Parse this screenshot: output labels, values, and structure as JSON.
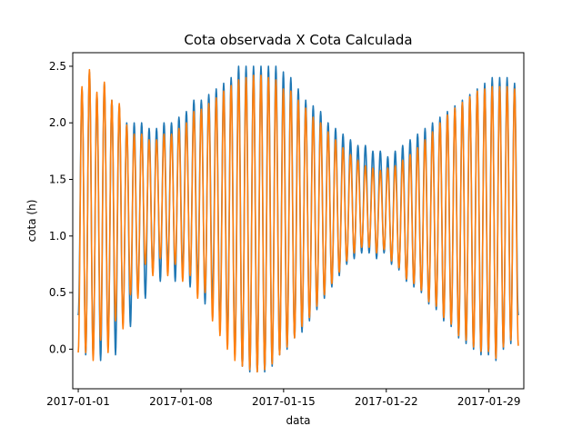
{
  "chart_data": {
    "type": "line",
    "title": "Cota observada X Cota Calculada",
    "xlabel": "data",
    "ylabel": "cota (h)",
    "x_start": "2017-01-01",
    "x_end": "2017-01-31",
    "xlim": [
      "2016-12-31 15:00",
      "2017-01-31 09:00"
    ],
    "ylim": [
      -0.35,
      2.62
    ],
    "x_ticks": [
      "2017-01-01",
      "2017-01-08",
      "2017-01-15",
      "2017-01-22",
      "2017-01-29"
    ],
    "y_ticks": [
      "0.0",
      "0.5",
      "1.0",
      "1.5",
      "2.0",
      "2.5"
    ],
    "grid": false,
    "legend": "none",
    "series": [
      {
        "color": "#1f77b4",
        "highs": [
          2.3,
          2.45,
          2.25,
          2.35,
          2.2,
          2.15,
          2.0,
          2.0,
          2.0,
          1.95,
          1.95,
          2.0,
          2.0,
          2.05,
          2.1,
          2.2,
          2.2,
          2.25,
          2.3,
          2.35,
          2.4,
          2.5,
          2.5,
          2.5,
          2.5,
          2.5,
          2.5,
          2.45,
          2.4,
          2.3,
          2.2,
          2.15,
          2.1,
          2.0,
          1.95,
          1.9,
          1.85,
          1.8,
          1.8,
          1.75,
          1.75,
          1.7,
          1.75,
          1.8,
          1.85,
          1.9,
          1.95,
          2.0,
          2.05,
          2.1,
          2.15,
          2.2,
          2.25,
          2.3,
          2.35,
          2.4,
          2.4,
          2.4,
          2.35,
          2.3,
          2.35
        ],
        "lows": [
          0.3,
          -0.05,
          -0.05,
          -0.1,
          0.05,
          -0.05,
          0.25,
          0.2,
          0.5,
          0.45,
          0.7,
          0.6,
          0.75,
          0.6,
          0.7,
          0.55,
          0.6,
          0.4,
          0.45,
          0.2,
          0.1,
          -0.05,
          -0.15,
          -0.2,
          -0.2,
          -0.2,
          -0.15,
          -0.05,
          0.0,
          0.1,
          0.15,
          0.25,
          0.35,
          0.45,
          0.55,
          0.65,
          0.75,
          0.8,
          0.85,
          0.85,
          0.8,
          0.85,
          0.75,
          0.7,
          0.6,
          0.55,
          0.5,
          0.4,
          0.35,
          0.25,
          0.2,
          0.1,
          0.05,
          0.0,
          -0.05,
          -0.05,
          -0.1,
          0.0,
          0.05,
          0.3
        ]
      },
      {
        "color": "#ff7f0e",
        "highs": [
          2.32,
          2.47,
          2.27,
          2.36,
          2.2,
          2.17,
          1.98,
          1.9,
          1.9,
          1.85,
          1.85,
          1.9,
          1.9,
          1.95,
          2.0,
          2.1,
          2.12,
          2.17,
          2.22,
          2.28,
          2.33,
          2.38,
          2.4,
          2.42,
          2.42,
          2.4,
          2.38,
          2.3,
          2.28,
          2.2,
          2.13,
          2.05,
          2.0,
          1.92,
          1.85,
          1.78,
          1.72,
          1.67,
          1.62,
          1.6,
          1.58,
          1.6,
          1.62,
          1.67,
          1.72,
          1.78,
          1.85,
          1.92,
          2.0,
          2.07,
          2.13,
          2.18,
          2.23,
          2.28,
          2.3,
          2.32,
          2.32,
          2.32,
          2.3,
          2.3,
          2.32
        ],
        "lows": [
          -0.03,
          -0.03,
          -0.1,
          0.08,
          -0.03,
          0.25,
          0.18,
          0.48,
          0.45,
          0.75,
          0.65,
          0.8,
          0.65,
          0.75,
          0.6,
          0.65,
          0.45,
          0.5,
          0.25,
          0.12,
          0.0,
          -0.1,
          -0.15,
          -0.18,
          -0.2,
          -0.18,
          -0.13,
          -0.05,
          0.02,
          0.1,
          0.2,
          0.28,
          0.38,
          0.48,
          0.58,
          0.68,
          0.78,
          0.85,
          0.9,
          0.9,
          0.85,
          0.88,
          0.78,
          0.72,
          0.62,
          0.58,
          0.52,
          0.42,
          0.38,
          0.28,
          0.22,
          0.12,
          0.08,
          0.02,
          -0.02,
          -0.02,
          -0.08,
          0.02,
          0.08,
          0.03
        ]
      }
    ]
  }
}
